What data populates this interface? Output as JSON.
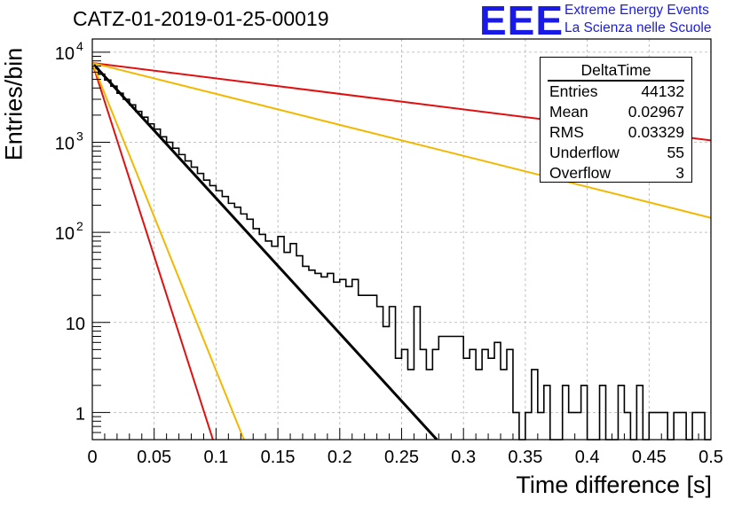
{
  "header": {
    "title": "CATZ-01-2019-01-25-00019",
    "logo_text": "EEE",
    "logo_line1": "Extreme Energy Events",
    "logo_line2": "La Scienza nelle Scuole"
  },
  "stats_box": {
    "title": "DeltaTime",
    "rows": [
      {
        "key": "Entries",
        "value": "44132"
      },
      {
        "key": "Mean",
        "value": "0.02967"
      },
      {
        "key": "RMS",
        "value": "0.03329"
      },
      {
        "key": "Underflow",
        "value": "55"
      },
      {
        "key": "Overflow",
        "value": "3"
      }
    ]
  },
  "colors": {
    "histogram": "#000000",
    "fit_black": "#000000",
    "red": "#e01010",
    "orange": "#f2b800",
    "grid": "#b0b0b0",
    "logo": "#1a1ae6"
  },
  "chart_data": {
    "type": "line",
    "xlabel": "Time difference [s]",
    "ylabel": "Entries/bin",
    "xlim": [
      0,
      0.5
    ],
    "ylim": [
      0.5,
      14000
    ],
    "yscale": "log",
    "grid": true,
    "x_ticks": [
      "0",
      "0.05",
      "0.1",
      "0.15",
      "0.2",
      "0.25",
      "0.3",
      "0.35",
      "0.4",
      "0.45",
      "0.5"
    ],
    "y_ticks": [
      {
        "value": 1,
        "label": "1"
      },
      {
        "value": 10,
        "label": "10"
      },
      {
        "value": 100,
        "label": "10",
        "exp": "2"
      },
      {
        "value": 1000,
        "label": "10",
        "exp": "3"
      },
      {
        "value": 10000,
        "label": "10",
        "exp": "4"
      }
    ],
    "histogram": {
      "bin_width": 0.005,
      "values": [
        6600,
        5700,
        4900,
        4200,
        3500,
        3000,
        2600,
        2200,
        1900,
        1600,
        1400,
        1150,
        1000,
        860,
        730,
        620,
        530,
        450,
        380,
        330,
        290,
        250,
        210,
        190,
        160,
        140,
        110,
        95,
        80,
        70,
        90,
        60,
        75,
        55,
        42,
        38,
        35,
        32,
        35,
        28,
        30,
        25,
        30,
        20,
        20,
        20,
        15,
        9,
        15,
        4,
        5,
        3,
        15,
        5,
        3,
        5,
        7,
        7,
        7,
        7,
        4,
        5,
        3,
        5,
        4,
        6,
        3,
        5,
        1,
        0,
        1,
        3,
        1,
        2,
        0,
        0,
        2,
        1,
        1,
        2,
        0,
        0,
        2,
        0,
        0,
        2,
        1,
        0,
        2,
        0,
        1,
        1,
        1,
        0,
        1,
        1,
        0,
        1,
        1,
        0
      ]
    },
    "series": [
      {
        "color": "black",
        "x": [
          0,
          0.2785
        ],
        "y": [
          7600,
          0.5
        ]
      },
      {
        "color": "red",
        "x": [
          0,
          0.5
        ],
        "y": [
          7600,
          1050
        ]
      },
      {
        "color": "orange",
        "x": [
          0,
          0.5
        ],
        "y": [
          7600,
          145
        ]
      },
      {
        "color": "red",
        "x": [
          0,
          0.0975
        ],
        "y": [
          7600,
          0.5
        ]
      },
      {
        "color": "orange",
        "x": [
          0,
          0.1225
        ],
        "y": [
          7600,
          0.5
        ]
      }
    ]
  }
}
